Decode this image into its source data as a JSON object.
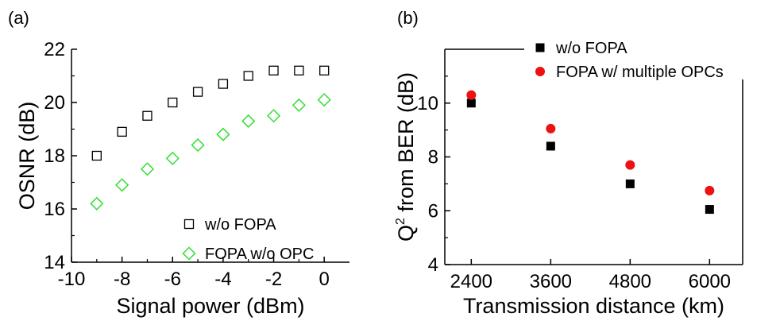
{
  "chart_data": [
    {
      "type": "scatter",
      "panel_label": "(a)",
      "xlabel": "Signal power (dBm)",
      "ylabel": "OSNR (dB)",
      "xlim": [
        -10,
        1
      ],
      "ylim": [
        14,
        22
      ],
      "xticks": [
        -10,
        -8,
        -6,
        -4,
        -2,
        0
      ],
      "yticks": [
        14,
        16,
        18,
        20,
        22
      ],
      "grid": false,
      "legend_position": "bottom-right",
      "series": [
        {
          "name": "w/o FOPA",
          "marker": "open-square",
          "color": "#000000",
          "x": [
            -9,
            -8,
            -7,
            -6,
            -5,
            -4,
            -3,
            -2,
            -1,
            0
          ],
          "y": [
            18.0,
            18.9,
            19.5,
            20.0,
            20.4,
            20.7,
            21.0,
            21.2,
            21.2,
            21.2
          ]
        },
        {
          "name": "FOPA w/o OPC",
          "marker": "open-diamond",
          "color": "#33dd33",
          "x": [
            -9,
            -8,
            -7,
            -6,
            -5,
            -4,
            -3,
            -2,
            -1,
            0
          ],
          "y": [
            16.2,
            16.9,
            17.5,
            17.9,
            18.4,
            18.8,
            19.3,
            19.5,
            19.9,
            20.1
          ]
        }
      ]
    },
    {
      "type": "scatter",
      "panel_label": "(b)",
      "xlabel": "Transmission distance (km)",
      "ylabel_main": "Q",
      "ylabel_sup": "2",
      "ylabel_rest": " from BER (dB)",
      "xlim": [
        2000,
        6500
      ],
      "ylim": [
        4,
        12
      ],
      "xticks": [
        2400,
        3600,
        4800,
        6000
      ],
      "yticks": [
        4,
        6,
        8,
        10
      ],
      "grid": false,
      "legend_position": "top-right",
      "series": [
        {
          "name": "w/o FOPA",
          "marker": "filled-square",
          "color": "#000000",
          "x": [
            2400,
            3600,
            4800,
            6000
          ],
          "y": [
            10.0,
            8.4,
            7.0,
            6.05
          ]
        },
        {
          "name": "FOPA w/ multiple OPCs",
          "marker": "filled-circle",
          "color": "#ee1111",
          "x": [
            2400,
            3600,
            4800,
            6000
          ],
          "y": [
            10.3,
            9.05,
            7.7,
            6.75
          ]
        }
      ]
    }
  ]
}
